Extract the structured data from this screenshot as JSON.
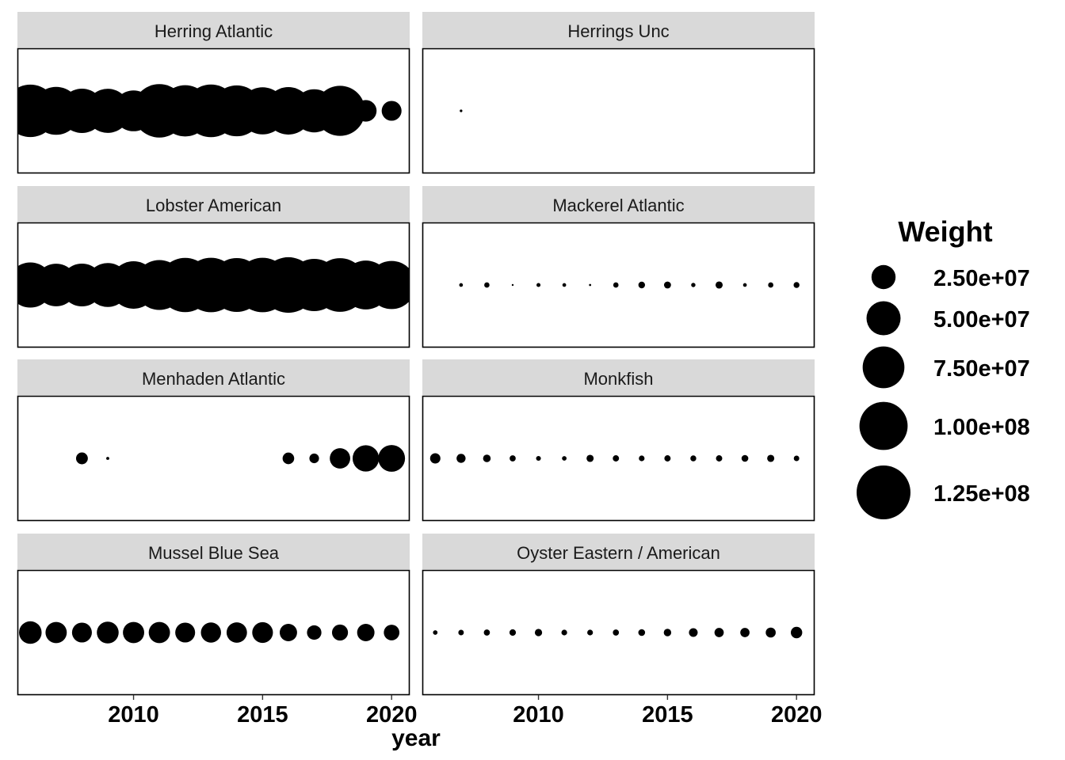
{
  "chart_data": {
    "type": "scatter",
    "encoding": "point size = Weight",
    "xlabel": "year",
    "ylabel": "",
    "xlim": [
      2005.5,
      2020.7
    ],
    "x_ticks": [
      2010,
      2015,
      2020
    ],
    "x_tick_labels": [
      "2010",
      "2015",
      "2020"
    ],
    "size_legend": {
      "title": "Weight",
      "breaks": [
        25000000,
        50000000,
        75000000,
        100000000,
        125000000
      ],
      "labels": [
        "2.50e+07",
        "5.00e+07",
        "7.50e+07",
        "1.00e+08",
        "1.25e+08"
      ],
      "max_weight": 125000000
    },
    "point_color": "#000000",
    "strip_fill": "#d9d9d9",
    "panel_border": "#000000",
    "panels": [
      {
        "name": "Herring Atlantic",
        "years": [
          2006,
          2007,
          2008,
          2009,
          2010,
          2011,
          2012,
          2013,
          2014,
          2015,
          2016,
          2017,
          2018,
          2019,
          2020
        ],
        "weights": [
          119000000,
          99000000,
          85000000,
          84000000,
          72000000,
          123000000,
          113000000,
          120000000,
          112000000,
          96000000,
          97000000,
          80000000,
          108000000,
          20000000,
          17000000
        ]
      },
      {
        "name": "Herrings Unc",
        "years": [
          2007
        ],
        "weights": [
          300000
        ]
      },
      {
        "name": "Lobster American",
        "years": [
          2006,
          2007,
          2008,
          2009,
          2010,
          2011,
          2012,
          2013,
          2014,
          2015,
          2016,
          2017,
          2018,
          2019,
          2020
        ],
        "weights": [
          88000000,
          78000000,
          79000000,
          83000000,
          97000000,
          107000000,
          127000000,
          128000000,
          125000000,
          128000000,
          133000000,
          118000000,
          124000000,
          103000000,
          100000000
        ]
      },
      {
        "name": "Mackerel Atlantic",
        "years": [
          2007,
          2008,
          2009,
          2010,
          2011,
          2012,
          2013,
          2014,
          2015,
          2016,
          2017,
          2018,
          2019,
          2020
        ],
        "weights": [
          600000,
          1200000,
          80000,
          700000,
          600000,
          200000,
          1200000,
          1900000,
          2100000,
          800000,
          2200000,
          600000,
          1200000,
          1500000
        ]
      },
      {
        "name": "Menhaden Atlantic",
        "years": [
          2008,
          2009,
          2016,
          2017,
          2018,
          2019,
          2020
        ],
        "weights": [
          6000000,
          400000,
          5800000,
          4000000,
          18000000,
          30000000,
          31000000
        ]
      },
      {
        "name": "Monkfish",
        "years": [
          2006,
          2007,
          2008,
          2009,
          2010,
          2011,
          2012,
          2013,
          2014,
          2015,
          2016,
          2017,
          2018,
          2019,
          2020
        ],
        "weights": [
          4600000,
          3500000,
          2500000,
          1600000,
          1000000,
          900000,
          2200000,
          1700000,
          1400000,
          1700000,
          1500000,
          1700000,
          2000000,
          2200000,
          1300000
        ]
      },
      {
        "name": "Mussel Blue Sea",
        "years": [
          2006,
          2007,
          2008,
          2009,
          2010,
          2011,
          2012,
          2013,
          2014,
          2015,
          2016,
          2017,
          2018,
          2019,
          2020
        ],
        "weights": [
          22000000,
          19500000,
          17000000,
          20500000,
          19500000,
          19500000,
          17000000,
          17500000,
          18000000,
          18500000,
          13000000,
          9000000,
          11000000,
          13000000,
          10500000
        ]
      },
      {
        "name": "Oyster Eastern / American",
        "years": [
          2006,
          2007,
          2008,
          2009,
          2010,
          2011,
          2012,
          2013,
          2014,
          2015,
          2016,
          2017,
          2018,
          2019,
          2020
        ],
        "weights": [
          900000,
          1300000,
          1600000,
          1800000,
          2300000,
          1400000,
          1400000,
          1600000,
          2000000,
          2400000,
          3300000,
          3700000,
          3700000,
          4300000,
          5600000
        ]
      }
    ]
  }
}
